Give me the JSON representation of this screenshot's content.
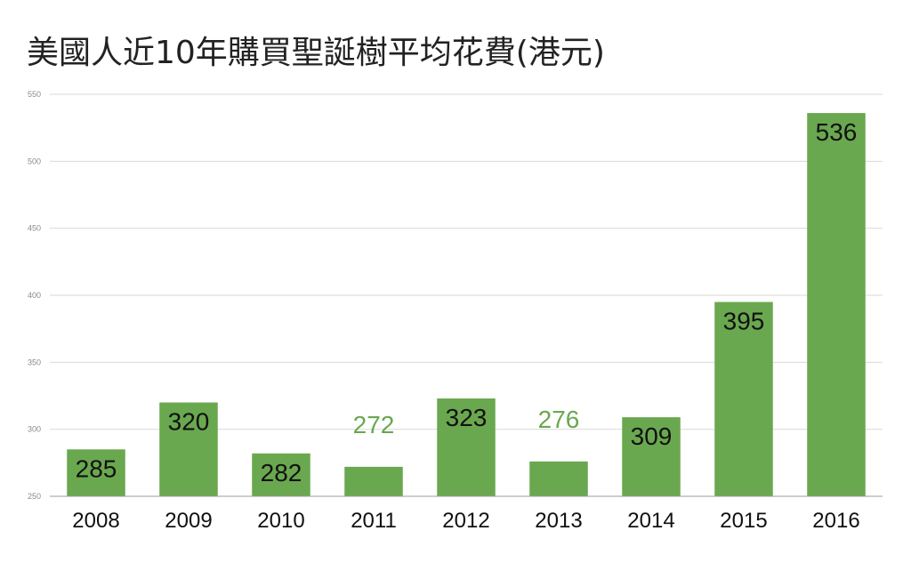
{
  "chart_data": {
    "type": "bar",
    "title": "美國人近10年購買聖誕樹平均花費(港元)",
    "xlabel": "",
    "ylabel": "",
    "categories": [
      "2008",
      "2009",
      "2010",
      "2011",
      "2012",
      "2013",
      "2014",
      "2015",
      "2016"
    ],
    "values": [
      285,
      320,
      282,
      272,
      323,
      276,
      309,
      395,
      536
    ],
    "data_labels": [
      "285",
      "320",
      "282",
      "272",
      "323",
      "276",
      "309",
      "395",
      "536"
    ],
    "ylim": [
      250,
      550
    ],
    "yticks": [
      250,
      300,
      350,
      400,
      450,
      500,
      550
    ],
    "ytick_labels": [
      "250",
      "300",
      "350",
      "400",
      "450",
      "500",
      "550"
    ],
    "grid": true,
    "legend": "none",
    "colors": {
      "bar": "#6aa84f",
      "label_inside": "#111111",
      "label_above": "#6aa84f",
      "grid": "#d9d9d9",
      "axis": "#9e9e9e"
    }
  }
}
